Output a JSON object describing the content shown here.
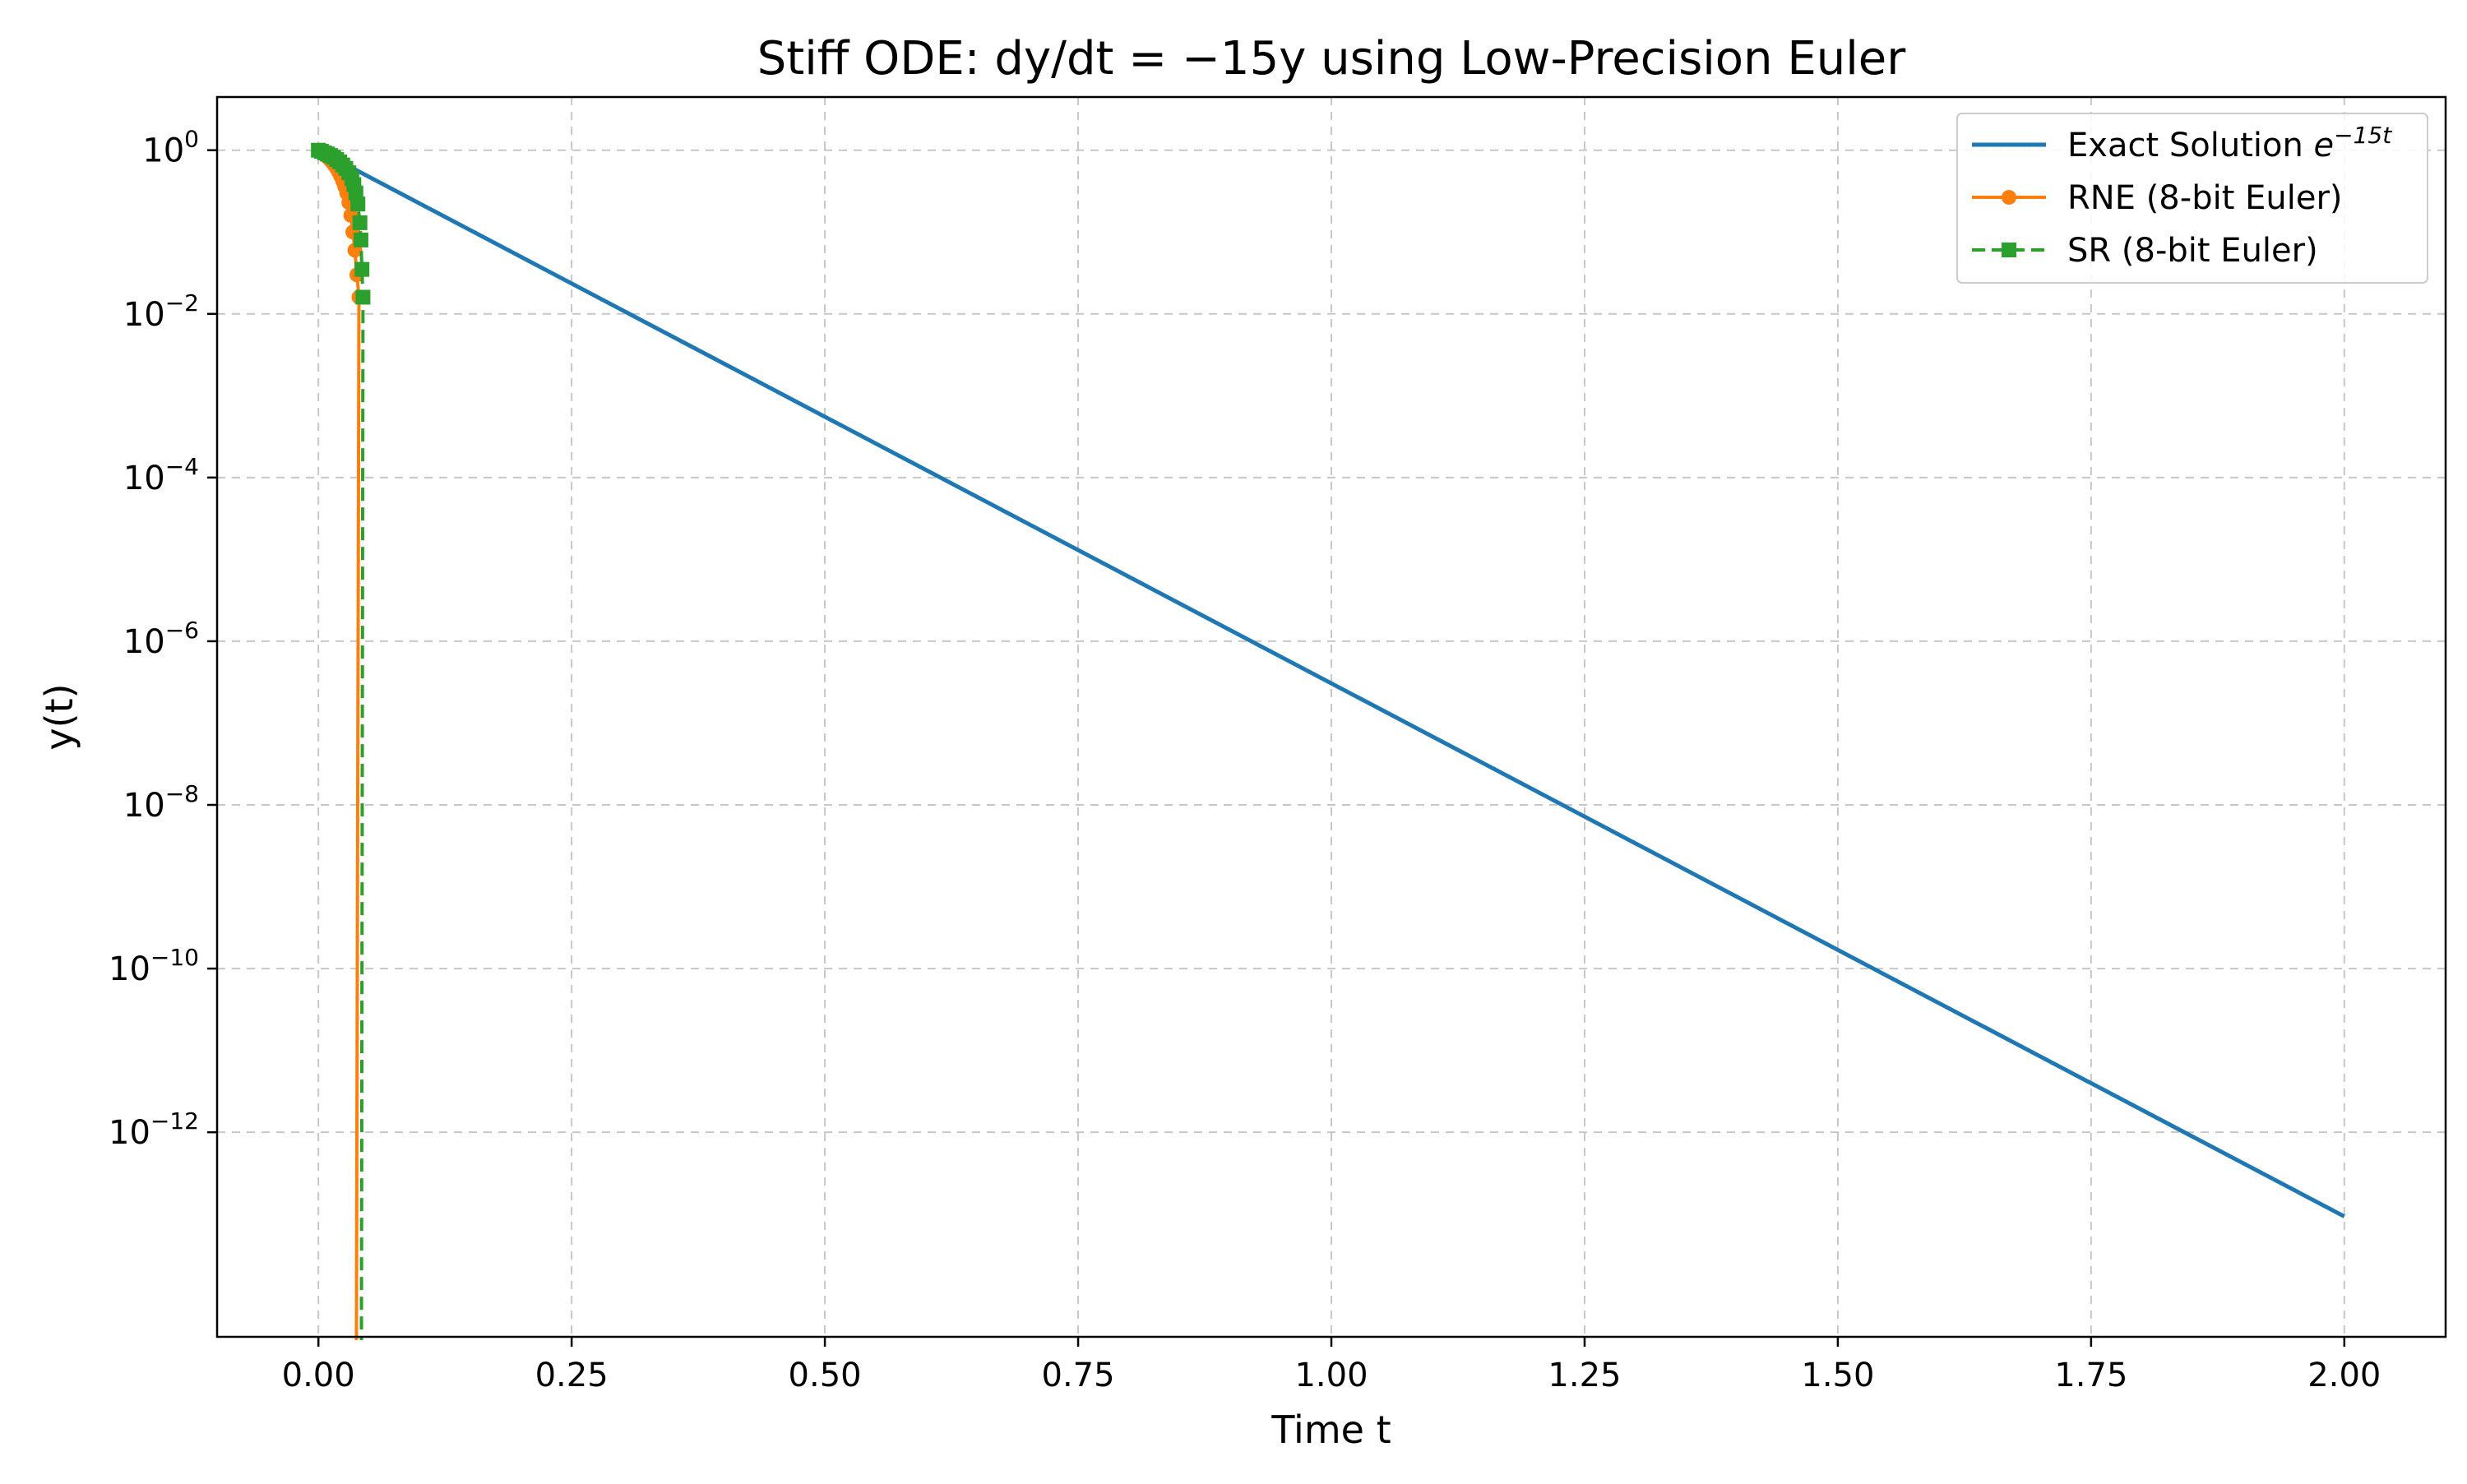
{
  "chart_data": {
    "type": "line",
    "title": "Stiff ODE: dy/dt = −15y using Low-Precision Euler",
    "xlabel": "Time t",
    "ylabel": "y(t)",
    "yscale": "log",
    "xlim": [
      -0.1,
      2.1
    ],
    "ylim_exponent": [
      -14.5,
      0.65
    ],
    "xticks": [
      0.0,
      0.25,
      0.5,
      0.75,
      1.0,
      1.25,
      1.5,
      1.75,
      2.0
    ],
    "xtick_labels": [
      "0.00",
      "0.25",
      "0.50",
      "0.75",
      "1.00",
      "1.25",
      "1.50",
      "1.75",
      "2.00"
    ],
    "yticks_exponent": [
      0,
      -2,
      -4,
      -6,
      -8,
      -10,
      -12
    ],
    "ytick_labels": [
      {
        "base": "10",
        "exp": "0"
      },
      {
        "base": "10",
        "exp": "−2"
      },
      {
        "base": "10",
        "exp": "−4"
      },
      {
        "base": "10",
        "exp": "−6"
      },
      {
        "base": "10",
        "exp": "−8"
      },
      {
        "base": "10",
        "exp": "−10"
      },
      {
        "base": "10",
        "exp": "−12"
      }
    ],
    "grid": true,
    "legend_position": "top-right",
    "series": [
      {
        "name": "Exact Solution e^{−15t}",
        "legend_main": "Exact Solution ",
        "legend_base": "e",
        "legend_exp": "−15t",
        "color": "#1f77b4",
        "style": "solid",
        "marker": "none",
        "x": [
          0.0,
          2.0
        ],
        "y": [
          1.0,
          9.36e-14
        ]
      },
      {
        "name": "RNE (8-bit Euler)",
        "color": "#ff7f0e",
        "style": "solid",
        "marker": "circle",
        "x": [
          0.0,
          0.002,
          0.004,
          0.006,
          0.008,
          0.01,
          0.012,
          0.014,
          0.016,
          0.018,
          0.02,
          0.022,
          0.024,
          0.026,
          0.028,
          0.03,
          0.032,
          0.034,
          0.036,
          0.038,
          0.04
        ],
        "y": [
          1.0,
          0.96,
          0.92,
          0.88,
          0.84,
          0.8,
          0.75,
          0.7,
          0.65,
          0.6,
          0.54,
          0.48,
          0.42,
          0.36,
          0.3,
          0.23,
          0.16,
          0.1,
          0.06,
          0.03,
          0.016
        ]
      },
      {
        "name": "SR (8-bit Euler)",
        "color": "#2ca02c",
        "style": "dashed",
        "marker": "square",
        "x": [
          0.0,
          0.003,
          0.006,
          0.009,
          0.012,
          0.015,
          0.018,
          0.021,
          0.024,
          0.027,
          0.03,
          0.033,
          0.035,
          0.037,
          0.039,
          0.041,
          0.042,
          0.043,
          0.044
        ],
        "y": [
          1.0,
          0.97,
          0.93,
          0.9,
          0.86,
          0.82,
          0.77,
          0.72,
          0.66,
          0.6,
          0.53,
          0.45,
          0.38,
          0.3,
          0.22,
          0.13,
          0.08,
          0.035,
          0.016
        ]
      }
    ],
    "drops_to_zero": [
      {
        "series": "RNE (8-bit Euler)",
        "x": 0.0375
      },
      {
        "series": "SR (8-bit Euler)",
        "x": 0.0425
      }
    ]
  }
}
